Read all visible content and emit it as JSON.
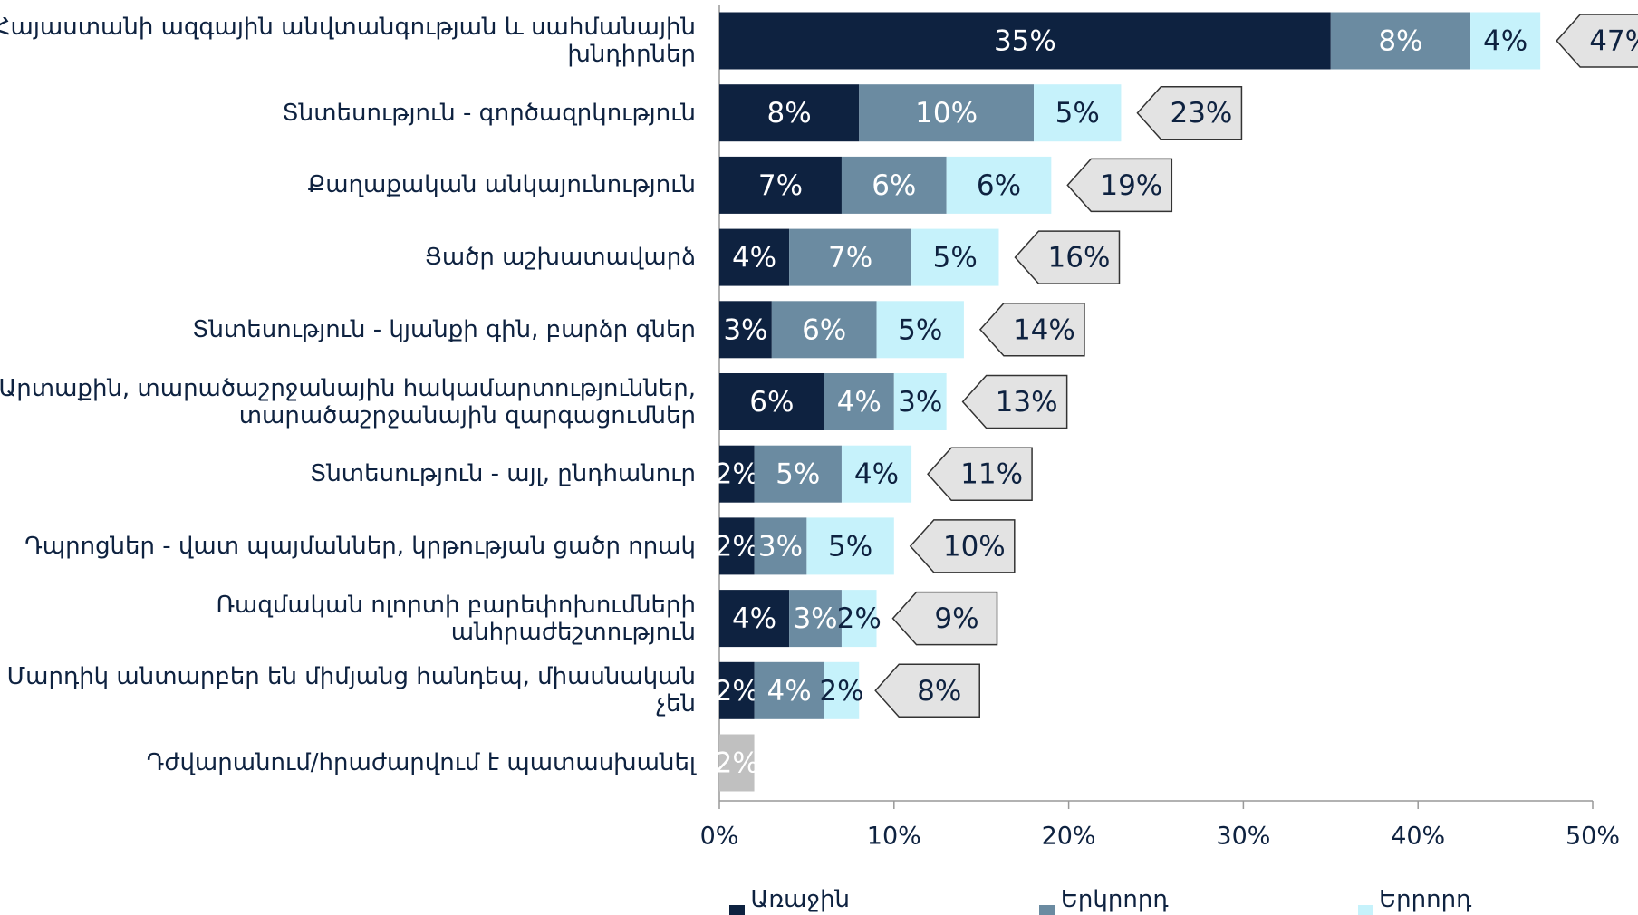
{
  "chart_data": {
    "type": "stacked-bar-horizontal",
    "categories": [
      "Հայաստանի ազգային անվտանգության և սահմանային\nխնդիրներ",
      "Տնտեսություն - գործազրկություն",
      "Քաղաքական անկայունություն",
      "Ցածր աշխատավարձ",
      "Տնտեսություն - կյանքի գին, բարձր գներ",
      "Արտաքին, տարածաշրջանային հակամարտություններ,\nտարածաշրջանային զարգացումներ",
      "Տնտեսություն - այլ, ընդհանուր",
      "Դպրոցներ - վատ պայմաններ, կրթության ցածր որակ",
      "Ռազմական ոլորտի բարեփոխումների\nանհրաժեշտություն",
      "Մարդիկ անտարբեր են միմյանց հանդեպ, միասնական\nչեն",
      "Դժվարանում/հրաժարվում է պատասխանել"
    ],
    "series": [
      {
        "name": "Առաջին պատասխան",
        "color": "#0e2240",
        "text_color": "#ffffff",
        "values": [
          35,
          8,
          7,
          4,
          3,
          6,
          2,
          2,
          4,
          2,
          null
        ],
        "value_labels": [
          "35%",
          "8%",
          "7%",
          "4%",
          "3%",
          "6%",
          "2%",
          "2%",
          "4%",
          "2%",
          null
        ]
      },
      {
        "name": "Երկրորդ պատասխան",
        "color": "#6b8ba1",
        "text_color": "#ffffff",
        "values": [
          8,
          10,
          6,
          7,
          6,
          4,
          5,
          3,
          3,
          4,
          null
        ],
        "value_labels": [
          "8%",
          "10%",
          "6%",
          "7%",
          "6%",
          "4%",
          "5%",
          "3%",
          "3%",
          "4%",
          null
        ]
      },
      {
        "name": "Երրորդ պատասխան",
        "color": "#c6f2fb",
        "text_color": "#0e2240",
        "values": [
          4,
          5,
          6,
          5,
          5,
          3,
          4,
          5,
          2,
          2,
          null
        ],
        "value_labels": [
          "4%",
          "5%",
          "6%",
          "5%",
          "5%",
          "3%",
          "4%",
          "5%",
          "2%",
          "2%",
          null
        ]
      }
    ],
    "other_color": "#c0c0c0",
    "other_values": [
      null,
      null,
      null,
      null,
      null,
      null,
      null,
      null,
      null,
      null,
      2
    ],
    "other_value_labels": [
      null,
      null,
      null,
      null,
      null,
      null,
      null,
      null,
      null,
      null,
      "2%"
    ],
    "totals": [
      47,
      23,
      19,
      16,
      14,
      13,
      11,
      10,
      9,
      8,
      null
    ],
    "total_labels": [
      "47%",
      "23%",
      "19%",
      "16%",
      "14%",
      "13%",
      "11%",
      "10%",
      "9%",
      "8%",
      null
    ],
    "xlim": [
      0,
      50
    ],
    "xticks": [
      {
        "value": 0,
        "label": "0%"
      },
      {
        "value": 10,
        "label": "10%"
      },
      {
        "value": 20,
        "label": "20%"
      },
      {
        "value": 30,
        "label": "30%"
      },
      {
        "value": 40,
        "label": "40%"
      },
      {
        "value": 50,
        "label": "50%"
      }
    ],
    "legend": "bottom"
  }
}
